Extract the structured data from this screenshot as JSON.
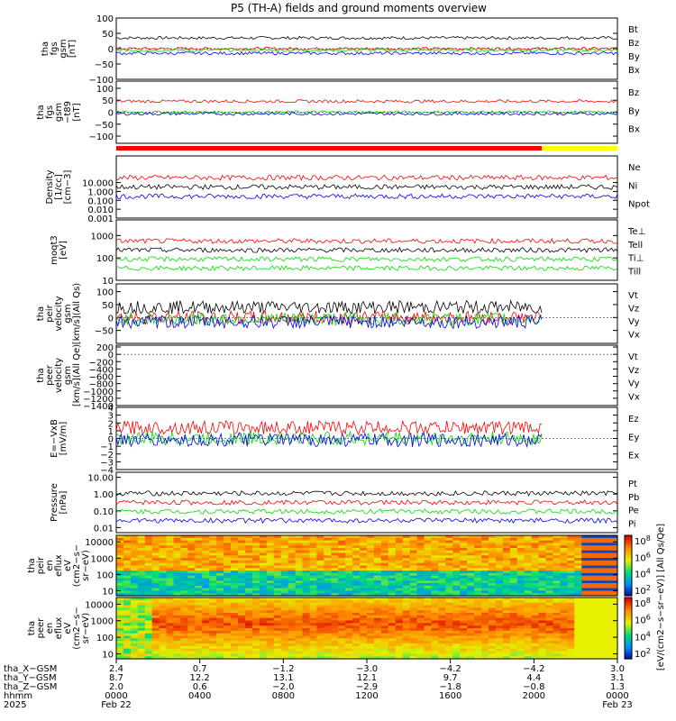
{
  "title": "P5 (TH-A) fields and ground moments overview",
  "colors": {
    "black": "#000000",
    "red": "#ff0000",
    "green": "#00dd00",
    "blue": "#0000ee",
    "yellow": "#ffff00"
  },
  "chart_data": [
    {
      "type": "line",
      "ylabel": [
        "tha",
        "fgs",
        "gsm",
        "[nT]"
      ],
      "ylim": [
        -100,
        100
      ],
      "yticks": [
        "100",
        "50",
        "0",
        "−50",
        "−100"
      ],
      "series": [
        {
          "name": "Bt",
          "color": "black"
        },
        {
          "name": "Bz",
          "color": "red"
        },
        {
          "name": "By",
          "color": "green"
        },
        {
          "name": "Bx",
          "color": "blue"
        }
      ]
    },
    {
      "type": "line",
      "ylabel": [
        "tha",
        "fgs",
        "gsm",
        "−t89",
        "[nT]"
      ],
      "ylim": [
        -130,
        130
      ],
      "yticks": [
        "100",
        "50",
        "0",
        "−50",
        "−100"
      ],
      "series": [
        {
          "name": "Bz",
          "color": "red"
        },
        {
          "name": "By",
          "color": "green"
        },
        {
          "name": "Bx",
          "color": "blue"
        }
      ]
    },
    {
      "type": "line",
      "ylabel": [
        "Density",
        "[1/cc]",
        "[cm−3]"
      ],
      "scale": "log",
      "ylim": [
        0.001,
        10000
      ],
      "yticks": [
        "10.000",
        "1.000",
        "0.100",
        "0.010",
        "0.001"
      ],
      "series": [
        {
          "name": "Ne",
          "color": "red"
        },
        {
          "name": "Ni",
          "color": "black"
        },
        {
          "name": "Npot",
          "color": "blue"
        }
      ]
    },
    {
      "type": "line",
      "ylabel": [
        "moqt3",
        "[eV]"
      ],
      "scale": "log",
      "ylim": [
        10,
        5000
      ],
      "yticks": [
        "1000",
        "100",
        "10"
      ],
      "series": [
        {
          "name": "Te⊥",
          "color": "red"
        },
        {
          "name": "Tell",
          "color": "black"
        },
        {
          "name": "Ti⊥",
          "color": "green"
        },
        {
          "name": "Till",
          "color": "green"
        }
      ]
    },
    {
      "type": "line",
      "ylabel": [
        "tha",
        "peir",
        "velocity",
        "gsm",
        "[km/s](All Qs)"
      ],
      "ylim": [
        -100,
        130
      ],
      "yticks": [
        "100",
        "50",
        "0",
        "−50"
      ],
      "series": [
        {
          "name": "Vt",
          "color": "black"
        },
        {
          "name": "Vz",
          "color": "red"
        },
        {
          "name": "Vy",
          "color": "green"
        },
        {
          "name": "Vx",
          "color": "blue"
        }
      ]
    },
    {
      "type": "line",
      "ylabel": [
        "tha",
        "peer",
        "velocity",
        "gsm",
        "[km/s](All Qe)"
      ],
      "ylim": [
        -1400,
        250
      ],
      "yticks": [
        "200",
        "0",
        "−200",
        "−400",
        "−600",
        "−800",
        "−1000",
        "−1200",
        "−1400"
      ],
      "series": [
        {
          "name": "Vt",
          "color": "black"
        },
        {
          "name": "Vz",
          "color": "red"
        },
        {
          "name": "Vy",
          "color": "green"
        },
        {
          "name": "Vx",
          "color": "blue"
        }
      ]
    },
    {
      "type": "line",
      "ylabel": [
        "E=−VxB",
        "[mV/m]"
      ],
      "ylim": [
        -4,
        4
      ],
      "yticks": [
        "4",
        "3",
        "2",
        "1",
        "0",
        "−1",
        "−2",
        "−3",
        "−4"
      ],
      "series": [
        {
          "name": "Ez",
          "color": "red"
        },
        {
          "name": "Ey",
          "color": "green"
        },
        {
          "name": "Ex",
          "color": "blue"
        }
      ]
    },
    {
      "type": "line",
      "ylabel": [
        "Pressure",
        "[nPa]"
      ],
      "scale": "log",
      "ylim": [
        0.005,
        20
      ],
      "yticks": [
        "10.00",
        "1.00",
        "0.10",
        "0.01"
      ],
      "series": [
        {
          "name": "Pt",
          "color": "black"
        },
        {
          "name": "Pb",
          "color": "red"
        },
        {
          "name": "Pe",
          "color": "green"
        },
        {
          "name": "Pi",
          "color": "blue"
        }
      ]
    },
    {
      "type": "heatmap",
      "ylabel": [
        "tha",
        "peir",
        "en",
        "eflux",
        "eV",
        "(cm2−s−",
        "sr−eV)"
      ],
      "scale": "log",
      "ylim": [
        5,
        25000
      ],
      "yticks": [
        "10000",
        "1000",
        "100",
        "10"
      ]
    },
    {
      "type": "heatmap",
      "ylabel": [
        "tha",
        "peer",
        "en",
        "eflux",
        "eV",
        "(cm2−s−",
        "sr−eV)"
      ],
      "scale": "log",
      "ylim": [
        5,
        25000
      ],
      "yticks": [
        "10000",
        "1000",
        "100",
        "10"
      ]
    }
  ],
  "colorbars": [
    {
      "labels": [
        "10^8",
        "10^6",
        "10^4",
        "10^2"
      ]
    },
    {
      "labels": [
        "10^8",
        "10^6",
        "10^4",
        "10^2"
      ]
    }
  ],
  "colorbar_title": "[eV/(cm2−s−sr−eV)] [All Qs/Qe]",
  "bottom_axis": {
    "rows": [
      {
        "label": "tha_X−GSM",
        "values": [
          "2.4",
          "0.7",
          "−1.2",
          "−3.0",
          "−4.2",
          "−4.2",
          "3.0"
        ]
      },
      {
        "label": "tha_Y−GSM",
        "values": [
          "8.7",
          "12.2",
          "13.1",
          "12.1",
          "9.7",
          "4.4",
          "3.1"
        ]
      },
      {
        "label": "tha_Z−GSM",
        "values": [
          "2.0",
          "0.6",
          "−2.0",
          "−2.9",
          "−1.8",
          "−0.8",
          "1.3"
        ]
      },
      {
        "label": "hhmm",
        "values": [
          "0000",
          "0400",
          "0800",
          "1200",
          "1600",
          "2000",
          "0000"
        ]
      },
      {
        "label": "2025",
        "values": [
          "Feb 22",
          "",
          "",
          "",
          "",
          "",
          "Feb 23"
        ]
      }
    ]
  }
}
